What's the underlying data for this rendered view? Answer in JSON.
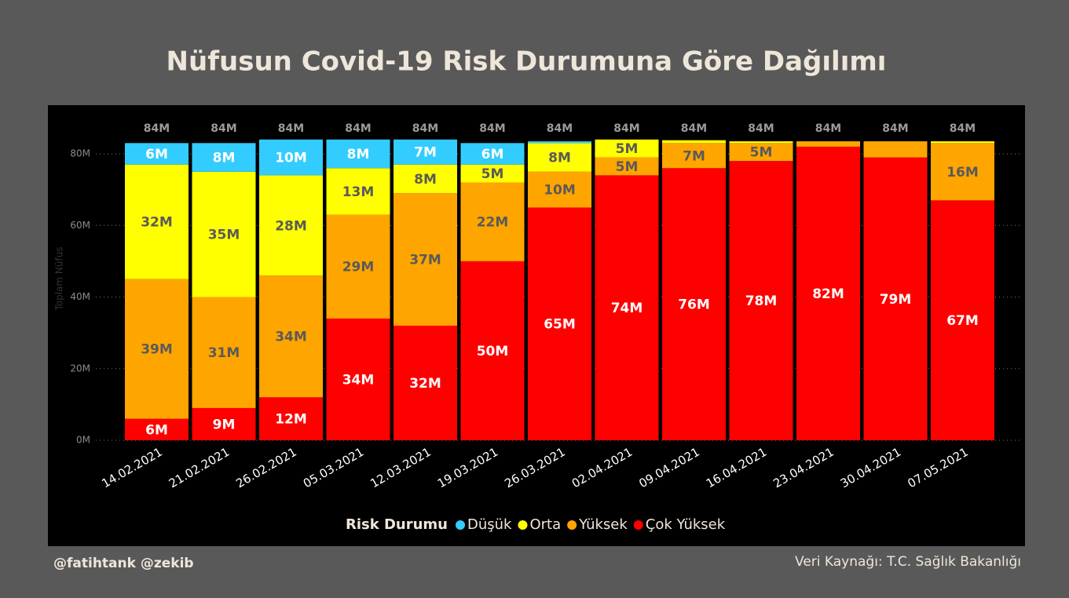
{
  "chart_data": {
    "type": "stacked_bar",
    "title": "Nüfusun Covid-19 Risk Durumuna Göre Dağılımı",
    "y_axis_label": "Toplam Nüfus",
    "legend_title": "Risk Durumu",
    "footer_left": "@fatihtank @zekib",
    "footer_right": "Veri Kaynağı: T.C. Sağlık Bakanlığı",
    "categories": [
      "14.02.2021",
      "21.02.2021",
      "26.02.2021",
      "05.03.2021",
      "12.03.2021",
      "19.03.2021",
      "26.03.2021",
      "02.04.2021",
      "09.04.2021",
      "16.04.2021",
      "23.04.2021",
      "30.04.2021",
      "07.05.2021"
    ],
    "series": [
      {
        "name": "Çok Yüksek",
        "color": "#ff0000",
        "values": [
          6,
          9,
          12,
          34,
          32,
          50,
          65,
          74,
          76,
          78,
          82,
          79,
          67
        ],
        "value_labels": [
          "6M",
          "9M",
          "12M",
          "34M",
          "32M",
          "50M",
          "65M",
          "74M",
          "76M",
          "78M",
          "82M",
          "79M",
          "67M"
        ]
      },
      {
        "name": "Yüksek",
        "color": "#ffa500",
        "values": [
          39,
          31,
          34,
          29,
          37,
          22,
          10,
          5,
          7,
          5,
          1.5,
          4.5,
          16
        ],
        "value_labels": [
          "39M",
          "31M",
          "34M",
          "29M",
          "37M",
          "22M",
          "10M",
          "5M",
          "7M",
          "5M",
          null,
          null,
          "16M"
        ]
      },
      {
        "name": "Orta",
        "color": "#ffff00",
        "values": [
          32,
          35,
          28,
          13,
          8,
          5,
          8,
          5,
          0.8,
          0.5,
          0,
          0,
          0.5
        ],
        "value_labels": [
          "32M",
          "35M",
          "28M",
          "13M",
          "8M",
          "5M",
          "8M",
          "5M",
          null,
          null,
          null,
          null,
          null
        ]
      },
      {
        "name": "Düşük",
        "color": "#33ccff",
        "values": [
          6,
          8,
          10,
          8,
          7,
          6,
          0.5,
          0,
          0,
          0,
          0,
          0,
          0
        ],
        "value_labels": [
          "6M",
          "8M",
          "10M",
          "8M",
          "7M",
          "6M",
          null,
          null,
          null,
          null,
          null,
          null,
          null
        ]
      }
    ],
    "totals": {
      "values": [
        84,
        84,
        84,
        84,
        84,
        84,
        84,
        84,
        84,
        84,
        84,
        84,
        84
      ],
      "value_labels": [
        "84M",
        "84M",
        "84M",
        "84M",
        "84M",
        "84M",
        "84M",
        "84M",
        "84M",
        "84M",
        "84M",
        "84M",
        "84M"
      ]
    },
    "ylim": [
      0,
      90
    ],
    "yticks": [
      {
        "value": 0,
        "label": "0M"
      },
      {
        "value": 20,
        "label": "20M"
      },
      {
        "value": 40,
        "label": "40M"
      },
      {
        "value": 60,
        "label": "60M"
      },
      {
        "value": 80,
        "label": "80M"
      }
    ],
    "grid": true
  }
}
